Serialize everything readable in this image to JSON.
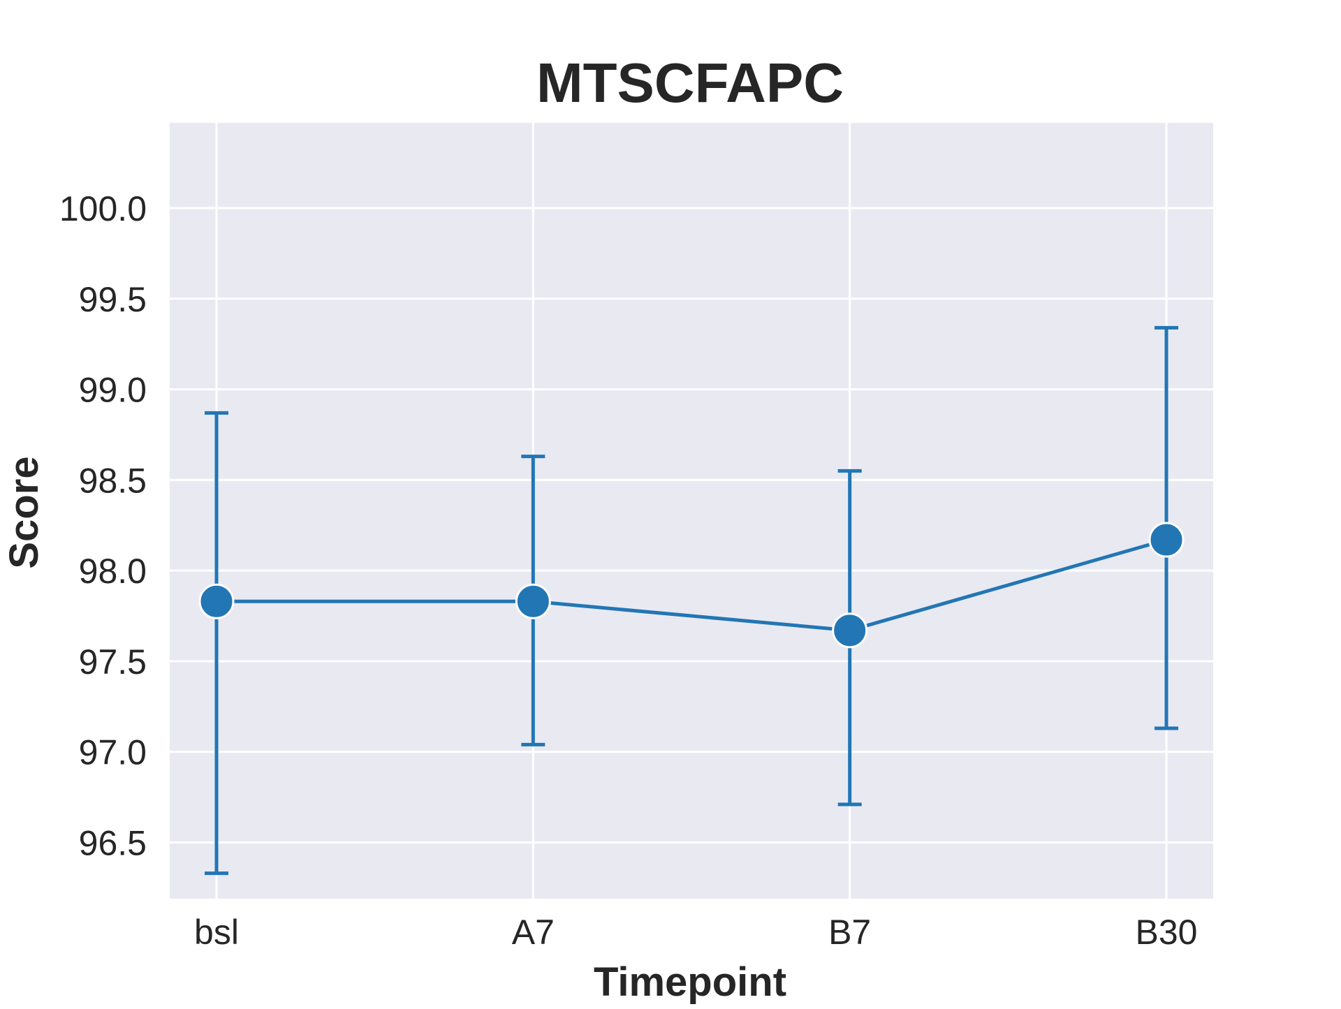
{
  "chart_data": {
    "type": "line",
    "title": "MTSCFAPC",
    "xlabel": "Timepoint",
    "ylabel": "Score",
    "categories": [
      "bsl",
      "A7",
      "B7",
      "B30"
    ],
    "series": [
      {
        "values": [
          97.83,
          97.83,
          97.67,
          98.17
        ],
        "error_low": [
          96.33,
          97.04,
          96.71,
          97.13
        ],
        "error_high": [
          98.87,
          98.63,
          98.55,
          99.34
        ]
      }
    ],
    "ylim": [
      96.19,
      100.47
    ],
    "yticks": [
      96.5,
      97.0,
      97.5,
      98.0,
      98.5,
      99.0,
      99.5,
      100.0
    ],
    "ytick_labels": [
      "96.5",
      "97.0",
      "97.5",
      "98.0",
      "98.5",
      "99.0",
      "99.5",
      "100.0"
    ],
    "grid": true,
    "legend": false,
    "colors": {
      "series": "#2276b4",
      "plot_background": "#e9e9f2",
      "grid": "#ffffff",
      "text": "#262626",
      "marker_edge": "#ffffff"
    }
  }
}
